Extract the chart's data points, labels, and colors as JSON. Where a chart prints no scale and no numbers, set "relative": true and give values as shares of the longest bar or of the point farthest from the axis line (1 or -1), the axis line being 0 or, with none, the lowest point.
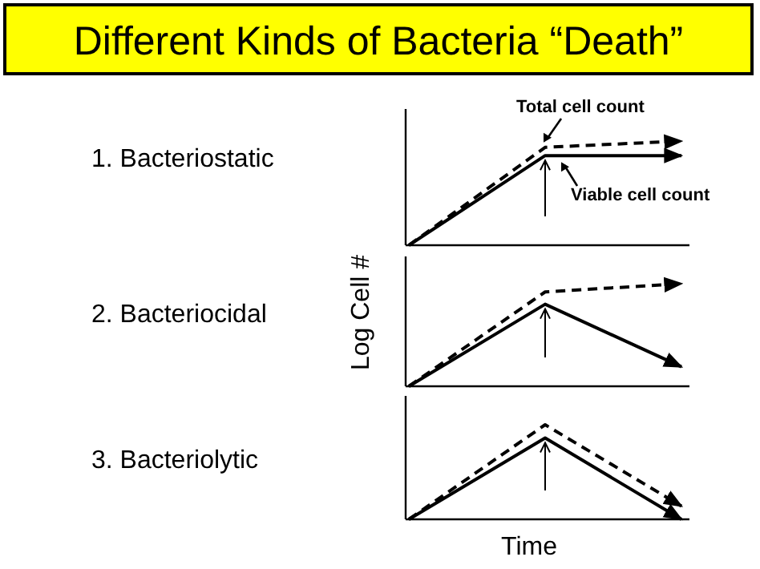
{
  "chart_data": [
    {
      "type": "other",
      "title": "Different Kinds of Bacteria “Death”"
    },
    {
      "type": "line",
      "title": "1. Bacteriostatic",
      "relative": true,
      "categories": [
        null,
        null,
        null
      ],
      "series": [
        {
          "name": "Total cell count",
          "color": "#000000",
          "line_style": "dashed",
          "values": [
            0,
            0.94,
            1
          ]
        },
        {
          "name": "Viable cell count",
          "color": "#000000",
          "line_style": "solid",
          "values": [
            0,
            0.86,
            0.86
          ]
        }
      ]
    },
    {
      "type": "line",
      "title": "2. Bacteriocidal",
      "ylabel": "Log Cell #",
      "relative": true,
      "categories": [
        null,
        null,
        null
      ],
      "series": [
        {
          "color": "#000000",
          "line_style": "dashed",
          "values": [
            0,
            0.92,
            1
          ]
        },
        {
          "color": "#000000",
          "line_style": "solid",
          "values": [
            0,
            0.8,
            0.19
          ]
        }
      ]
    },
    {
      "type": "line",
      "title": "3. Bacteriolytic",
      "xlabel": "Time",
      "relative": true,
      "categories": [
        null,
        null,
        null
      ],
      "series": [
        {
          "color": "#000000",
          "line_style": "dashed",
          "values": [
            0,
            1,
            0.14
          ]
        },
        {
          "color": "#000000",
          "line_style": "solid",
          "values": [
            0,
            0.86,
            0
          ]
        }
      ]
    }
  ]
}
